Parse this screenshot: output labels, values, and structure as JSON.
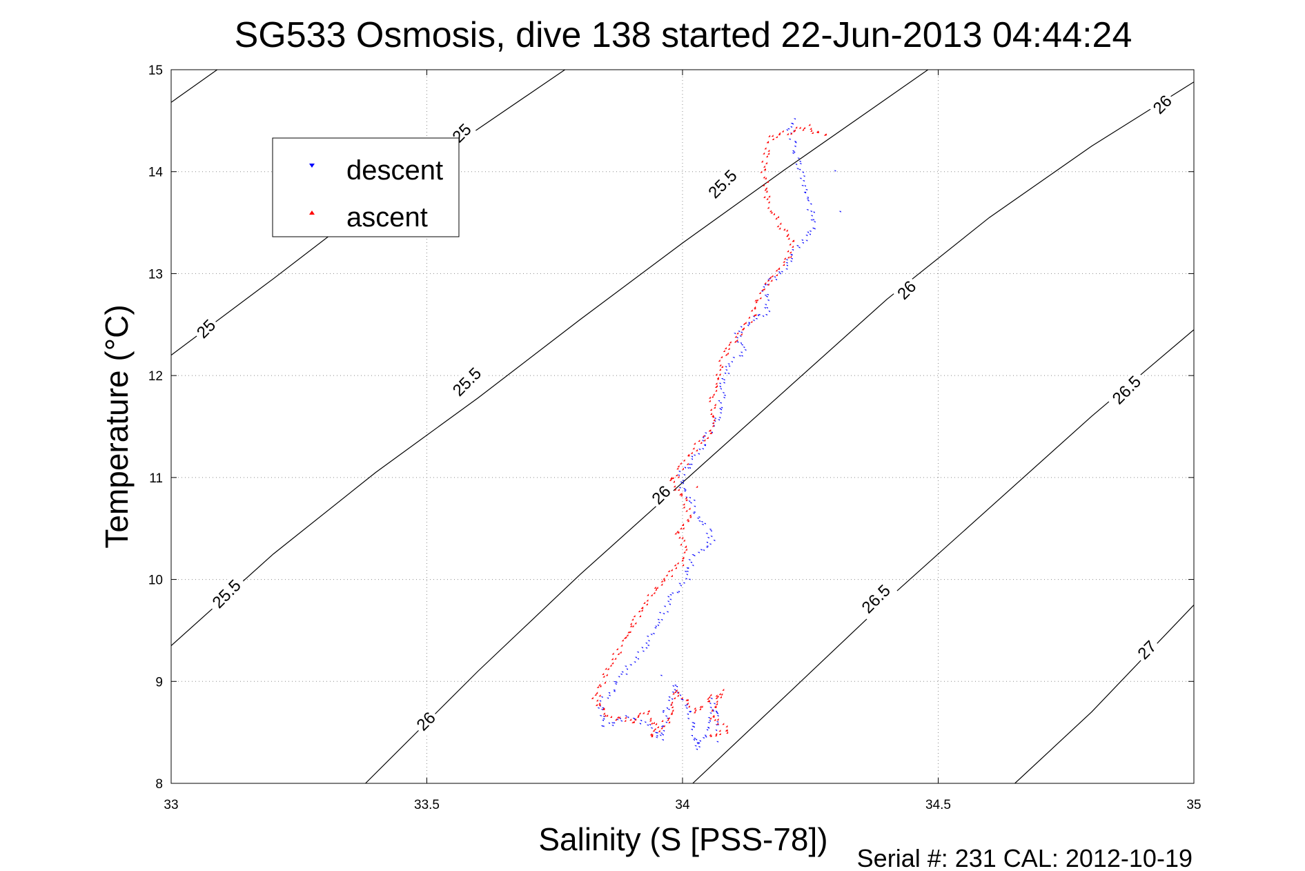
{
  "chart_data": {
    "type": "scatter",
    "title": "SG533 Osmosis, dive 138 started 22-Jun-2013 04:44:24",
    "xlabel": "Salinity (S [PSS-78])",
    "ylabel": "Temperature (°C)",
    "xlim": [
      33,
      35
    ],
    "ylim": [
      8,
      15
    ],
    "xticks": [
      "33",
      "33.5",
      "34",
      "34.5",
      "35"
    ],
    "yticks": [
      "8",
      "9",
      "10",
      "11",
      "12",
      "13",
      "14",
      "15"
    ],
    "grid": true,
    "legend_position": "top-left",
    "footer": "Serial #: 231  CAL: 2012-10-19",
    "colors": {
      "descent": "#0000ff",
      "ascent": "#ff0000",
      "contour": "#000000"
    },
    "contours": [
      {
        "label": "25",
        "points": [
          [
            33.0,
            14.68
          ],
          [
            33.09,
            15.0
          ]
        ]
      },
      {
        "label": "25",
        "points": [
          [
            33.0,
            12.2
          ],
          [
            33.2,
            12.95
          ],
          [
            33.4,
            13.72
          ],
          [
            33.58,
            14.35
          ],
          [
            33.77,
            15.0
          ]
        ]
      },
      {
        "label": "25.5",
        "points": [
          [
            33.0,
            9.35
          ],
          [
            33.2,
            10.25
          ],
          [
            33.4,
            11.05
          ],
          [
            33.6,
            11.78
          ],
          [
            33.8,
            12.55
          ],
          [
            34.0,
            13.3
          ],
          [
            34.2,
            14.02
          ],
          [
            34.38,
            14.65
          ],
          [
            34.48,
            15.0
          ]
        ]
      },
      {
        "label": "26",
        "points": [
          [
            33.38,
            8.0
          ],
          [
            33.6,
            9.1
          ],
          [
            33.8,
            10.05
          ],
          [
            34.0,
            10.95
          ],
          [
            34.2,
            11.85
          ],
          [
            34.4,
            12.75
          ],
          [
            34.6,
            13.55
          ],
          [
            34.8,
            14.25
          ],
          [
            35.0,
            14.88
          ]
        ]
      },
      {
        "label": "26.5",
        "points": [
          [
            34.02,
            8.0
          ],
          [
            34.2,
            8.85
          ],
          [
            34.4,
            9.8
          ],
          [
            34.6,
            10.7
          ],
          [
            34.8,
            11.6
          ],
          [
            35.0,
            12.45
          ]
        ]
      },
      {
        "label": "27",
        "points": [
          [
            34.65,
            8.0
          ],
          [
            34.8,
            8.7
          ],
          [
            35.0,
            9.75
          ]
        ]
      }
    ],
    "contour_labels": [
      {
        "label": "25",
        "x": 33.07,
        "y": 12.45,
        "angle": -45
      },
      {
        "label": "25",
        "x": 33.57,
        "y": 14.37,
        "angle": -45
      },
      {
        "label": "25.5",
        "x": 33.11,
        "y": 9.85,
        "angle": -45
      },
      {
        "label": "25.5",
        "x": 33.58,
        "y": 11.93,
        "angle": -45
      },
      {
        "label": "25.5",
        "x": 34.08,
        "y": 13.87,
        "angle": -45
      },
      {
        "label": "26",
        "x": 33.5,
        "y": 8.6,
        "angle": -45
      },
      {
        "label": "26",
        "x": 33.96,
        "y": 10.82,
        "angle": -45
      },
      {
        "label": "26",
        "x": 34.44,
        "y": 12.83,
        "angle": -45
      },
      {
        "label": "26",
        "x": 34.94,
        "y": 14.65,
        "angle": -45
      },
      {
        "label": "26.5",
        "x": 34.38,
        "y": 9.8,
        "angle": -45
      },
      {
        "label": "26.5",
        "x": 34.87,
        "y": 11.85,
        "angle": -45
      },
      {
        "label": "27",
        "x": 34.91,
        "y": 9.3,
        "angle": -45
      }
    ],
    "series": [
      {
        "name": "descent",
        "marker": "triangle-down",
        "path": [
          [
            34.22,
            14.5
          ],
          [
            34.21,
            14.45
          ],
          [
            34.26,
            13.45
          ],
          [
            34.22,
            13.2
          ],
          [
            34.2,
            13.05
          ],
          [
            34.16,
            12.85
          ],
          [
            34.17,
            12.62
          ],
          [
            34.14,
            12.55
          ],
          [
            34.11,
            12.4
          ],
          [
            34.12,
            12.2
          ],
          [
            34.09,
            12.07
          ],
          [
            34.08,
            11.95
          ],
          [
            34.08,
            11.8
          ],
          [
            34.07,
            11.6
          ],
          [
            34.05,
            11.4
          ],
          [
            34.03,
            11.2
          ],
          [
            34.0,
            11.05
          ],
          [
            34.0,
            10.9
          ],
          [
            34.02,
            10.75
          ],
          [
            34.03,
            10.6
          ],
          [
            34.05,
            10.5
          ],
          [
            34.06,
            10.35
          ],
          [
            34.02,
            10.2
          ],
          [
            34.01,
            10.0
          ],
          [
            33.98,
            9.8
          ],
          [
            33.95,
            9.55
          ],
          [
            33.93,
            9.35
          ],
          [
            33.9,
            9.15
          ],
          [
            33.87,
            8.95
          ],
          [
            33.84,
            8.75
          ],
          [
            33.85,
            8.55
          ],
          [
            33.9,
            8.65
          ],
          [
            33.94,
            8.55
          ],
          [
            33.96,
            8.42
          ],
          [
            33.97,
            8.7
          ],
          [
            33.99,
            8.95
          ],
          [
            34.02,
            8.6
          ],
          [
            34.03,
            8.32
          ],
          [
            34.05,
            8.5
          ],
          [
            34.06,
            8.8
          ],
          [
            34.07,
            8.5
          ]
        ],
        "extra_points": [
          [
            34.3,
            14.0
          ],
          [
            34.31,
            13.6
          ],
          [
            33.96,
            9.05
          ],
          [
            34.07,
            8.4
          ]
        ]
      },
      {
        "name": "ascent",
        "marker": "triangle-up",
        "path": [
          [
            34.28,
            14.35
          ],
          [
            34.24,
            14.42
          ],
          [
            34.17,
            14.32
          ],
          [
            34.16,
            14.0
          ],
          [
            34.17,
            13.7
          ],
          [
            34.19,
            13.5
          ],
          [
            34.22,
            13.3
          ],
          [
            34.2,
            13.1
          ],
          [
            34.17,
            12.92
          ],
          [
            34.15,
            12.75
          ],
          [
            34.14,
            12.58
          ],
          [
            34.12,
            12.45
          ],
          [
            34.1,
            12.3
          ],
          [
            34.08,
            12.15
          ],
          [
            34.07,
            12.0
          ],
          [
            34.06,
            11.8
          ],
          [
            34.06,
            11.6
          ],
          [
            34.06,
            11.45
          ],
          [
            34.03,
            11.3
          ],
          [
            34.0,
            11.1
          ],
          [
            33.98,
            10.95
          ],
          [
            34.0,
            10.8
          ],
          [
            34.02,
            10.6
          ],
          [
            33.99,
            10.45
          ],
          [
            34.01,
            10.3
          ],
          [
            34.0,
            10.15
          ],
          [
            33.97,
            10.0
          ],
          [
            33.94,
            9.85
          ],
          [
            33.91,
            9.6
          ],
          [
            33.88,
            9.35
          ],
          [
            33.86,
            9.15
          ],
          [
            33.84,
            8.95
          ],
          [
            33.83,
            8.8
          ],
          [
            33.86,
            8.65
          ],
          [
            33.9,
            8.6
          ],
          [
            33.93,
            8.7
          ],
          [
            33.95,
            8.55
          ],
          [
            33.94,
            8.45
          ],
          [
            33.97,
            8.6
          ],
          [
            33.99,
            8.9
          ],
          [
            34.03,
            8.7
          ],
          [
            34.05,
            8.8
          ],
          [
            34.08,
            8.9
          ],
          [
            34.06,
            8.65
          ],
          [
            34.09,
            8.5
          ],
          [
            34.05,
            8.45
          ]
        ],
        "extra_points": [
          [
            34.25,
            14.45
          ],
          [
            33.98,
            10.98
          ],
          [
            34.03,
            10.9
          ]
        ]
      }
    ]
  }
}
